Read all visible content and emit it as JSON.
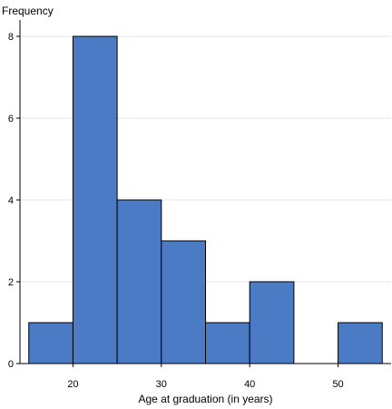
{
  "chart_data": {
    "type": "bar",
    "histogram": true,
    "ylabel": "Frequency",
    "xlabel": "Age at graduation (in years)",
    "bins": [
      {
        "start": 15,
        "end": 20,
        "count": 1
      },
      {
        "start": 20,
        "end": 25,
        "count": 8
      },
      {
        "start": 25,
        "end": 30,
        "count": 4
      },
      {
        "start": 30,
        "end": 35,
        "count": 3
      },
      {
        "start": 35,
        "end": 40,
        "count": 1
      },
      {
        "start": 40,
        "end": 45,
        "count": 2
      },
      {
        "start": 45,
        "end": 50,
        "count": 0
      },
      {
        "start": 50,
        "end": 55,
        "count": 1
      }
    ],
    "xticks": [
      "20",
      "30",
      "40",
      "50"
    ],
    "yticks": [
      "0",
      "2",
      "4",
      "6",
      "8"
    ],
    "xlim": [
      14,
      56
    ],
    "ylim": [
      0,
      8.4
    ],
    "grid": true,
    "colors": {
      "bar_fill": "#4a7bc4",
      "bar_stroke": "#000000",
      "grid": "#e3e3e3"
    }
  }
}
